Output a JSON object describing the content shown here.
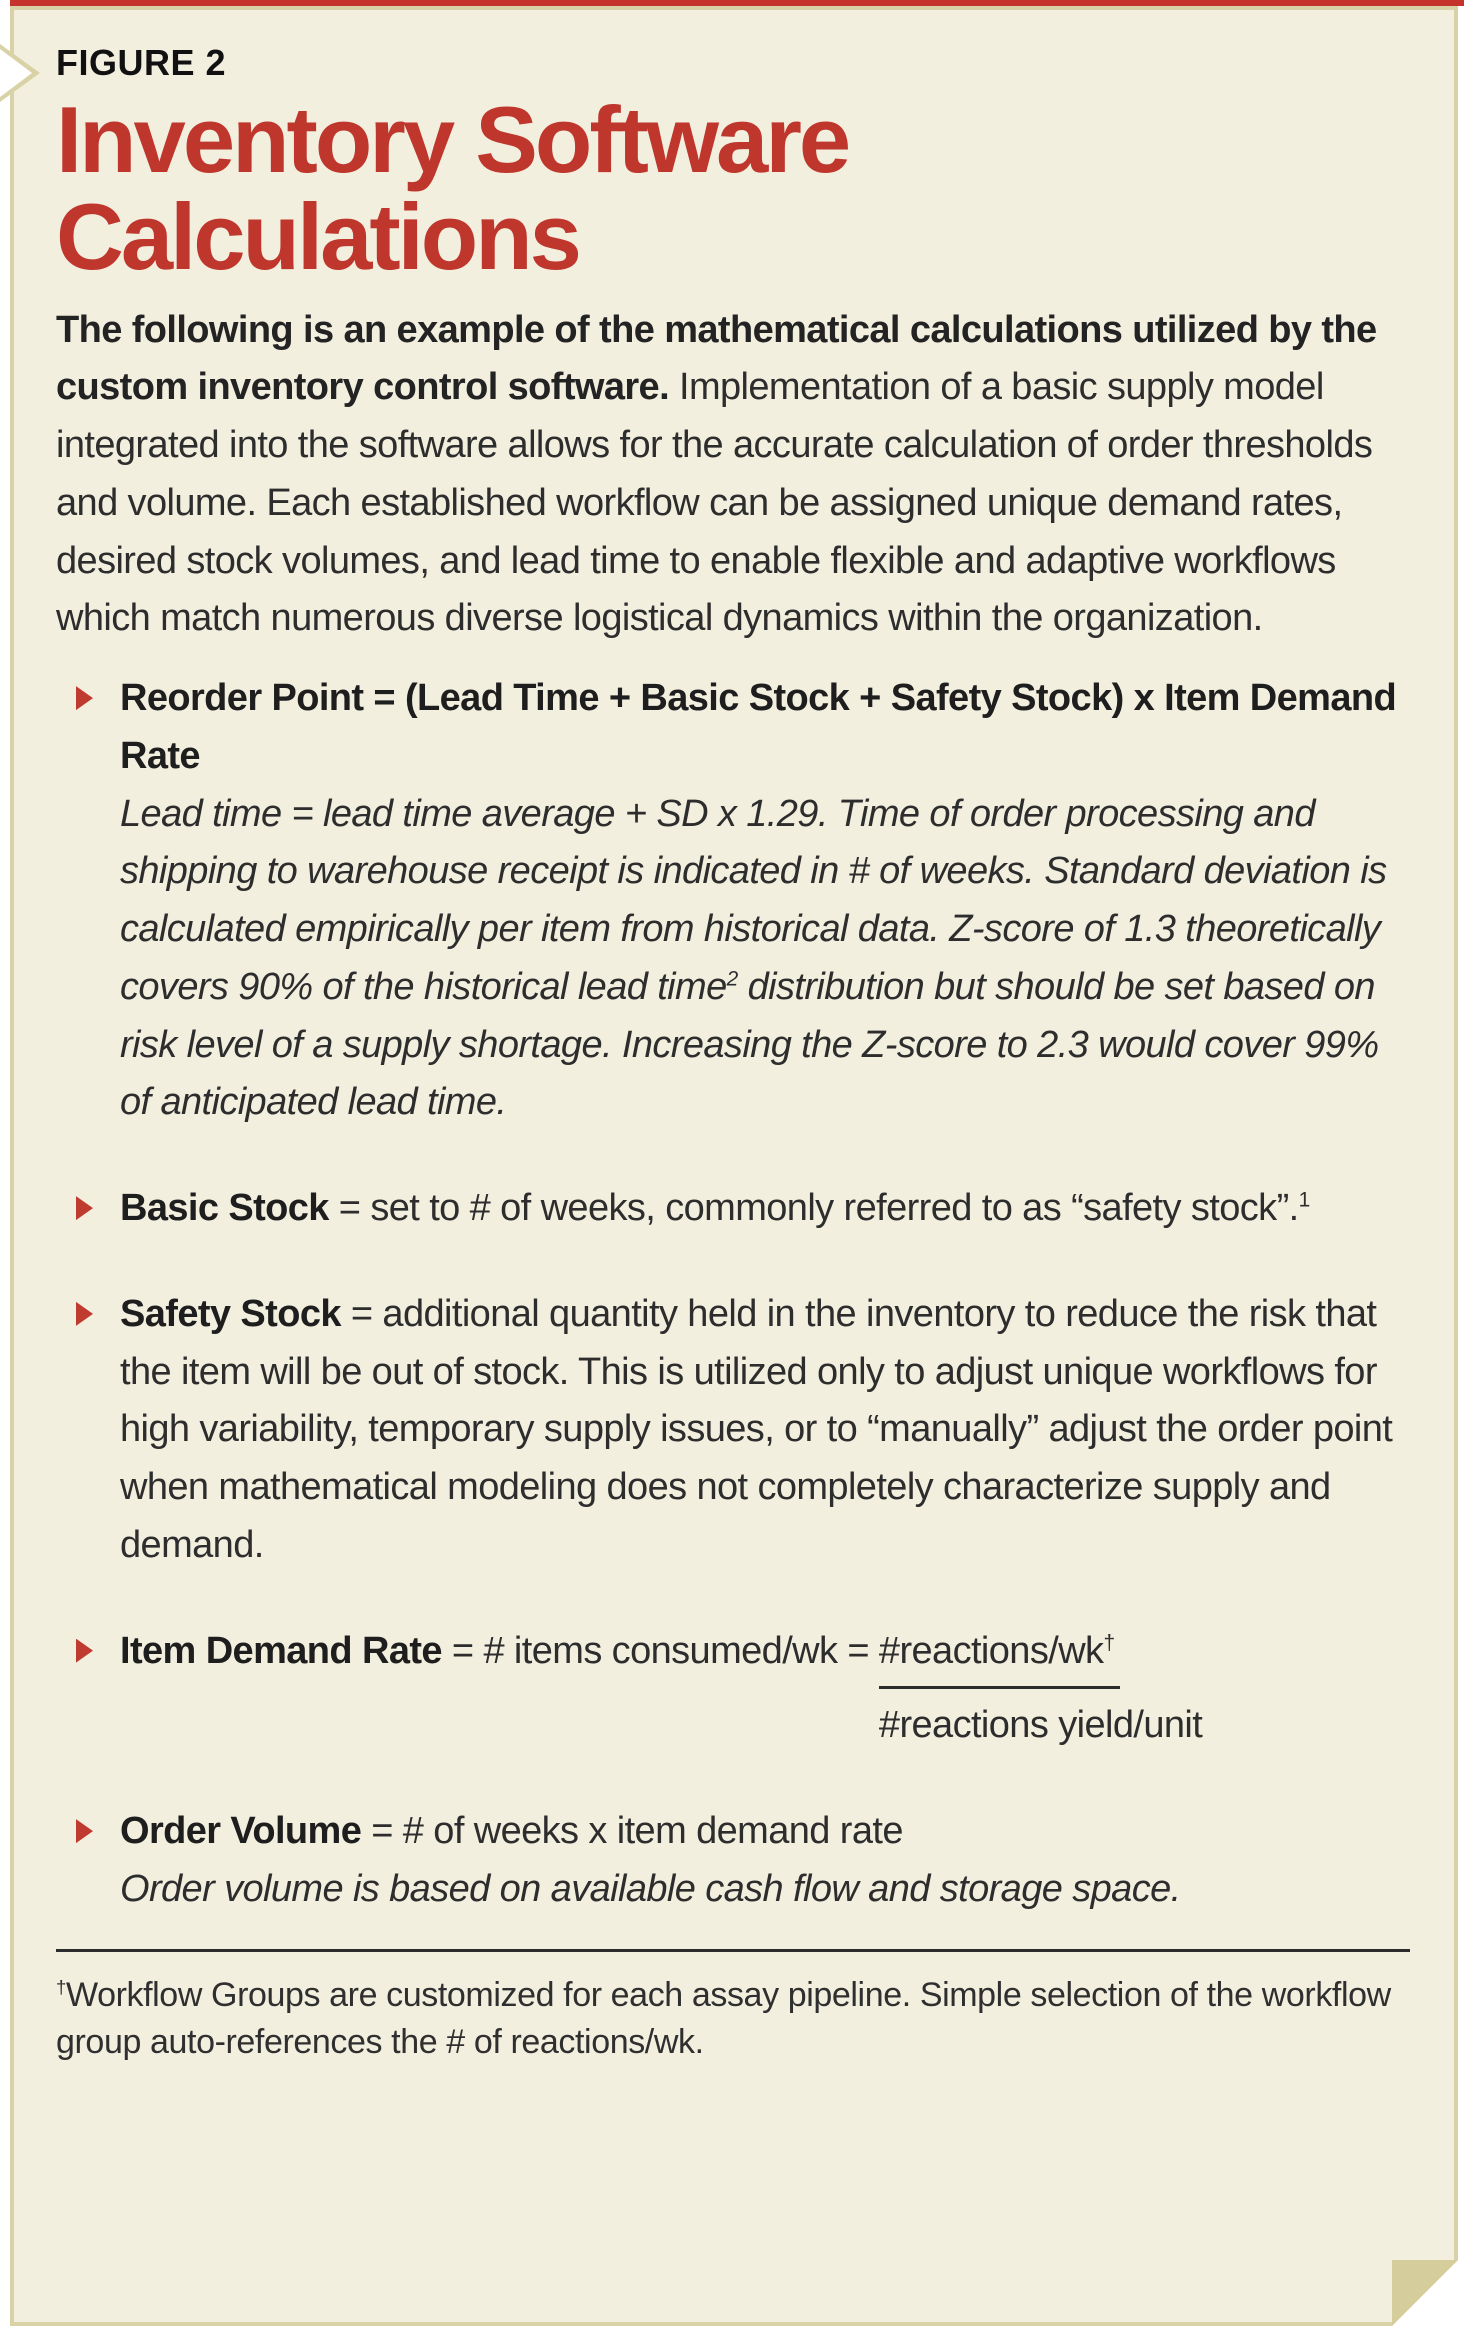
{
  "figure": {
    "label": "FIGURE 2",
    "title": "Inventory Software Calculations"
  },
  "intro": {
    "lead": "The following is an example of the mathematical calculations utilized by the custom inventory control software.",
    "rest": " Implementation of a basic supply model integrated into the software allows for the accurate calculation of order thresholds and volume. Each established workflow can be assigned unique demand rates, desired stock volumes, and lead time to enable flexible and adaptive workflows which match numerous diverse logistical dynamics within the organization."
  },
  "bullets": {
    "reorder": {
      "heading": "Reorder Point = (Lead Time + Basic Stock + Safety Stock) x Item Demand Rate",
      "note_part1": "Lead time = lead time average + SD x 1.29. Time of order processing and shipping to warehouse receipt is indicated in # of weeks. Standard deviation is calculated empirically per item from historical data. Z-score of 1.3 theoretically covers 90% of the historical lead time",
      "note_sup": "2",
      "note_part2": " distribution but should be set based on risk level of a supply shortage. Increasing the Z-score to 2.3 would cover 99% of anticipated lead time."
    },
    "basic": {
      "term": "Basic Stock",
      "text": " = set to # of weeks, commonly referred to as “safety stock”.",
      "sup": "1"
    },
    "safety": {
      "term": "Safety Stock",
      "text": " = additional quantity held in the inventory to reduce the risk that the item will be out of stock. This is utilized only to adjust unique workflows for high variability, temporary supply issues, or to “manually” adjust the order point when mathematical modeling does not completely characterize supply and demand."
    },
    "demand": {
      "term": "Item Demand Rate",
      "text": " = # items consumed/wk = ",
      "frac_num": "#reactions/wk",
      "frac_sup": "†",
      "frac_den": "#reactions yield/unit"
    },
    "volume": {
      "term": "Order Volume",
      "text": " = # of weeks x item demand rate",
      "note": "Order volume is based on available cash flow and storage space."
    }
  },
  "footnote": {
    "sup": "†",
    "text": "Workflow Groups are customized for each assay pipeline. Simple selection of the workflow group auto-references the # of reactions/wk."
  },
  "colors": {
    "accent_red": "#c5332c",
    "title_red": "#bf362d",
    "marker_red": "#bf3a2f",
    "panel_bg": "#f2efdf",
    "panel_border": "#d9d2a6",
    "fold": "#d5cd9b",
    "ink": "#2d2d2d"
  }
}
